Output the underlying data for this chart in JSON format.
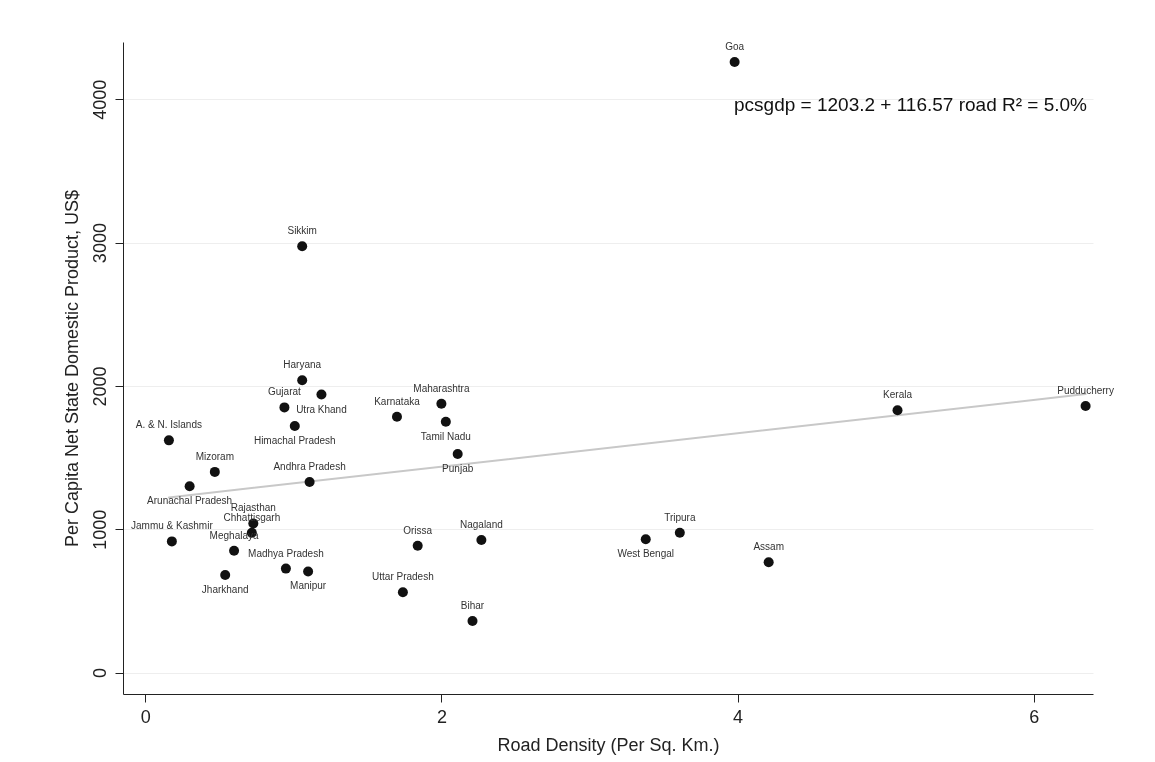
{
  "chart_data": {
    "type": "scatter",
    "xlabel": "Road Density (Per Sq. Km.)",
    "ylabel": "Per Capita Net State Domestic Product, US$",
    "xlim": [
      -0.15,
      6.4
    ],
    "xticks": [
      0,
      2,
      4,
      6
    ],
    "ylim": [
      -150,
      4400
    ],
    "yticks": [
      0,
      1000,
      2000,
      3000,
      4000
    ],
    "grid": "y",
    "annotations": [
      "pcsgdp = 1203.2 + 116.57 road    R² = 5.0%"
    ],
    "series": [
      {
        "marker": "circle",
        "color": "#111111",
        "x": [
          0.16,
          0.3,
          0.47,
          0.18,
          0.54,
          0.6,
          0.72,
          0.73,
          0.95,
          1.1,
          1.11,
          1.01,
          0.94,
          1.06,
          1.19,
          1.7,
          2.0,
          2.03,
          2.11,
          1.84,
          2.27,
          1.74,
          2.21,
          5.08,
          6.35,
          3.38,
          3.61,
          4.21,
          3.98,
          1.06
        ],
        "values": [
          1620,
          1300,
          1400,
          915,
          680,
          850,
          975,
          1040,
          725,
          705,
          1330,
          1720,
          1850,
          2040,
          1940,
          1785,
          1875,
          1750,
          1525,
          885,
          925,
          560,
          360,
          1830,
          1860,
          930,
          975,
          770,
          4260,
          2975
        ],
        "value_labels": [
          "A. & N. Islands",
          "Arunachal Pradesh",
          "Mizoram",
          "Jammu & Kashmir",
          "Jharkhand",
          "Meghalaya",
          "Chhattisgarh",
          "Rajasthan",
          "Madhya Pradesh",
          "Manipur",
          "Andhra Pradesh",
          "Himachal Pradesh",
          "Gujarat",
          "Haryana",
          "Utra Khand",
          "Karnataka",
          "Maharashtra",
          "Tamil Nadu",
          "Punjab",
          "Orissa",
          "Nagaland",
          "Uttar Pradesh",
          "Bihar",
          "Kerala",
          "Pudducherry",
          "West Bengal",
          "Tripura",
          "Assam",
          "Goa",
          "Sikkim"
        ]
      },
      {
        "type": "line",
        "color": "#c8c8c8",
        "x": [
          0.16,
          6.35
        ],
        "values": [
          1222,
          1943
        ]
      }
    ]
  }
}
